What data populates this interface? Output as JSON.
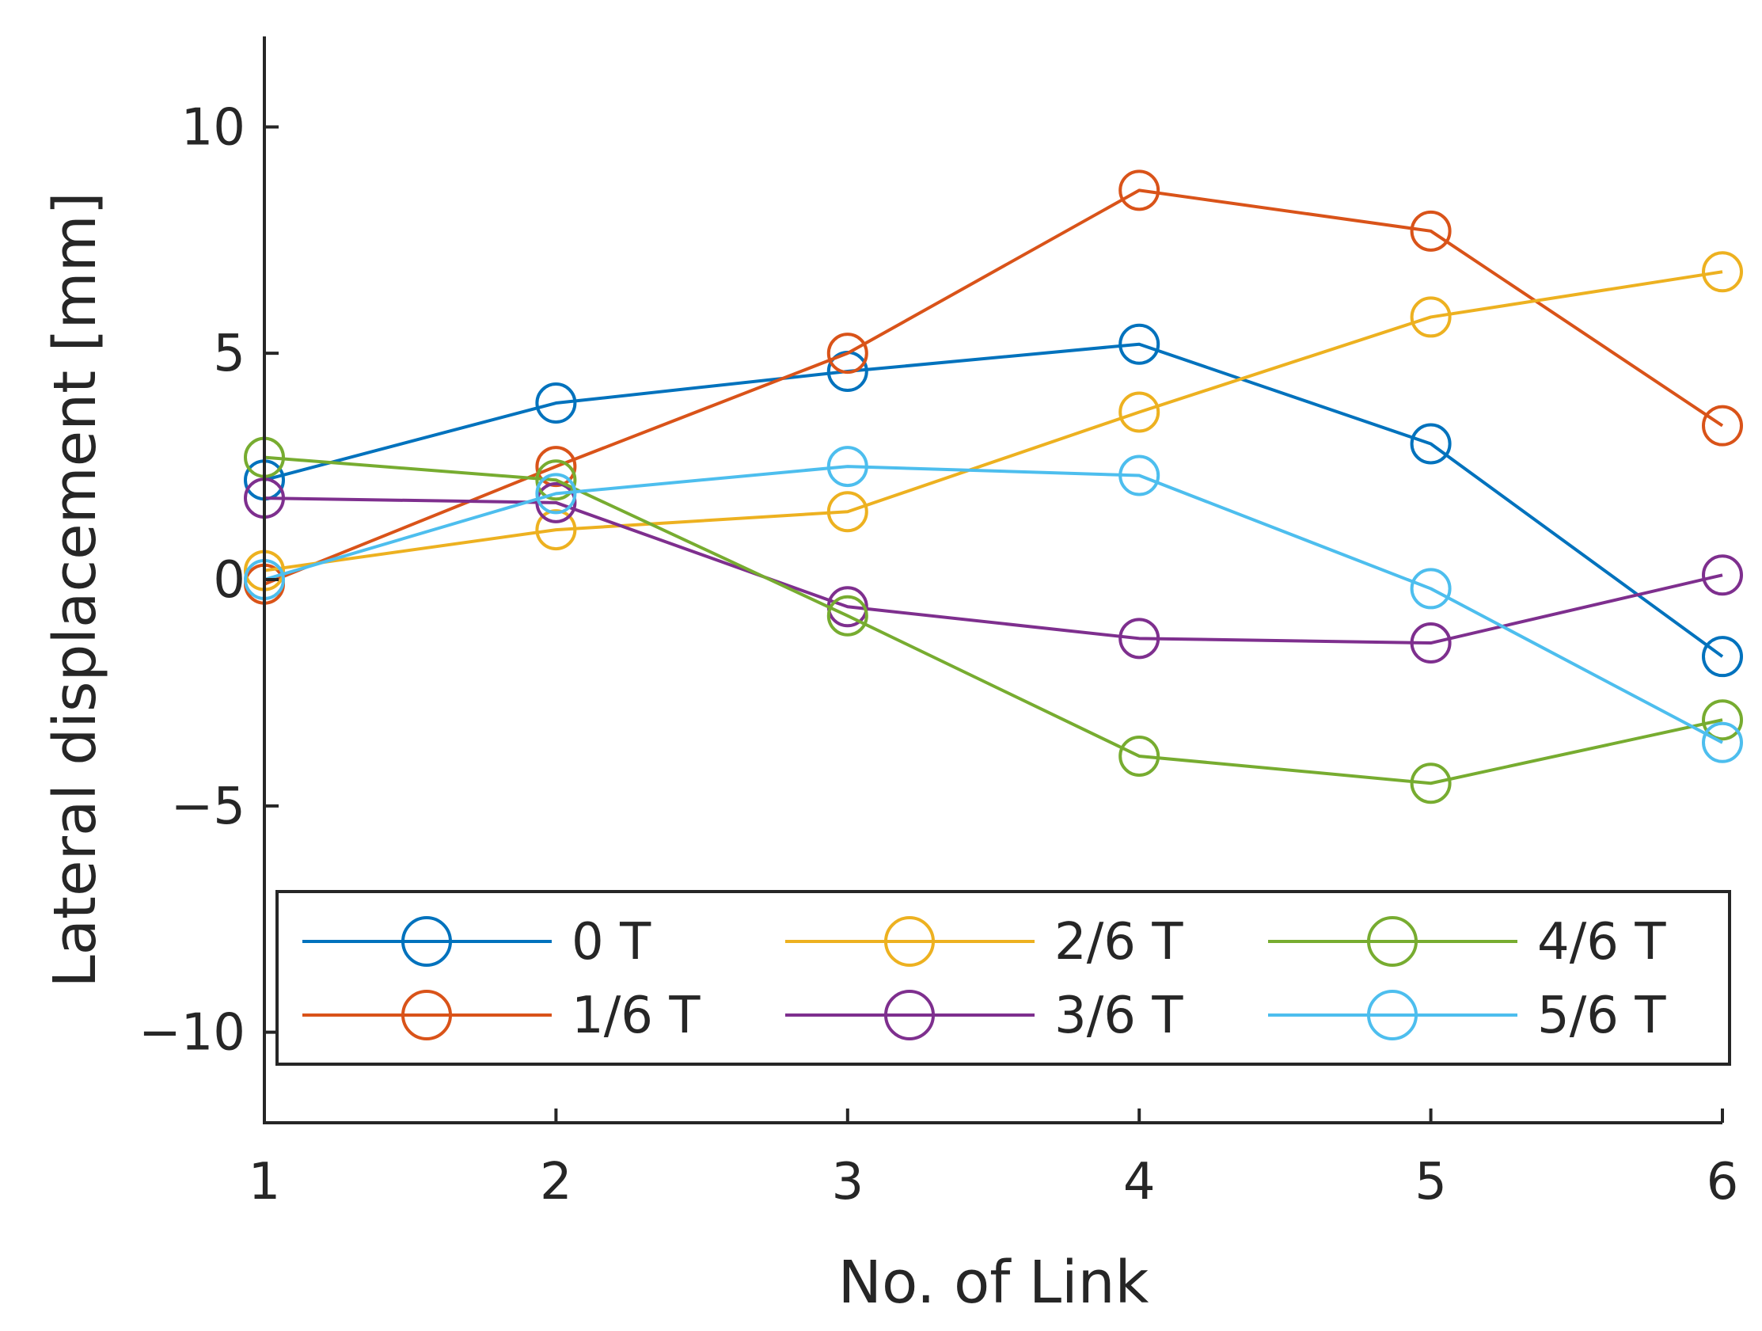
{
  "chart_data": {
    "type": "line",
    "title": "",
    "xlabel": "No. of Link",
    "ylabel": "Lateral displacement [mm]",
    "x": [
      1,
      2,
      3,
      4,
      5,
      6
    ],
    "xlim": [
      1,
      6
    ],
    "ylim": [
      -12,
      12
    ],
    "xticks": [
      "1",
      "2",
      "3",
      "4",
      "5",
      "6"
    ],
    "yticks": [
      {
        "value": -10,
        "label": "−10"
      },
      {
        "value": -5,
        "label": "−5"
      },
      {
        "value": 0,
        "label": "0"
      },
      {
        "value": 5,
        "label": "5"
      },
      {
        "value": 10,
        "label": "10"
      }
    ],
    "grid": false,
    "legend_position": "bottom",
    "series": [
      {
        "name": "0 T",
        "color": "#0072BD",
        "values": [
          2.2,
          3.9,
          4.6,
          5.2,
          3.0,
          -1.7
        ]
      },
      {
        "name": "1/6 T",
        "color": "#D95319",
        "values": [
          -0.1,
          2.5,
          5.0,
          8.6,
          7.7,
          3.4
        ]
      },
      {
        "name": "2/6 T",
        "color": "#EDB120",
        "values": [
          0.2,
          1.1,
          1.5,
          3.7,
          5.8,
          6.8
        ]
      },
      {
        "name": "3/6 T",
        "color": "#7E2F8E",
        "values": [
          1.8,
          1.7,
          -0.6,
          -1.3,
          -1.4,
          0.1
        ]
      },
      {
        "name": "4/6 T",
        "color": "#77AC30",
        "values": [
          2.7,
          2.2,
          -0.8,
          -3.9,
          -4.5,
          -3.1
        ]
      },
      {
        "name": "5/6 T",
        "color": "#4DBEEE",
        "values": [
          0.0,
          1.9,
          2.5,
          2.3,
          -0.2,
          -3.6
        ]
      }
    ]
  }
}
